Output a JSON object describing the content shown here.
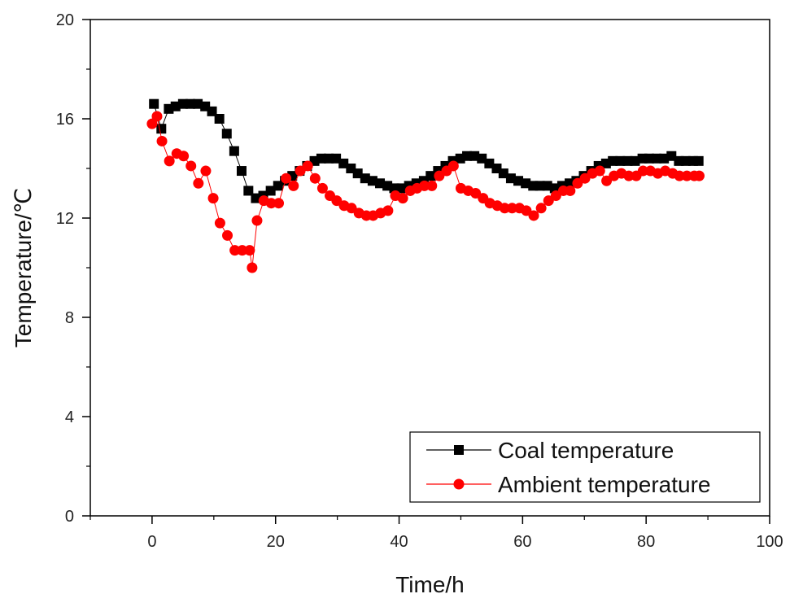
{
  "chart_data": {
    "type": "scatter",
    "title": "",
    "xlabel": "Time/h",
    "ylabel": "Temperature/℃",
    "xlim": [
      -10,
      100
    ],
    "ylim": [
      0,
      20
    ],
    "xticks": [
      0,
      20,
      40,
      60,
      80,
      100
    ],
    "yticks": [
      0,
      4,
      8,
      12,
      16,
      20
    ],
    "xtick_labels": [
      "0",
      "20",
      "40",
      "60",
      "80",
      "100"
    ],
    "ytick_labels": [
      "0",
      "4",
      "8",
      "12",
      "16",
      "20"
    ],
    "grid": false,
    "legend_position": "bottom-right",
    "series": [
      {
        "name": "Coal temperature",
        "color": "#000000",
        "marker": "square",
        "x": [
          0.3,
          1.5,
          2.7,
          3.8,
          5.0,
          6.2,
          7.4,
          8.6,
          9.7,
          10.9,
          12.1,
          13.3,
          14.5,
          15.6,
          16.8,
          18.0,
          19.2,
          20.4,
          21.5,
          22.7,
          23.9,
          25.1,
          26.3,
          27.4,
          28.6,
          29.8,
          31.0,
          32.2,
          33.3,
          34.5,
          35.7,
          36.9,
          38.1,
          39.2,
          40.4,
          41.6,
          42.8,
          44.0,
          45.1,
          46.3,
          47.5,
          48.7,
          49.9,
          51.0,
          52.2,
          53.4,
          54.6,
          55.8,
          56.9,
          58.1,
          59.3,
          60.5,
          61.7,
          62.8,
          64.0,
          65.2,
          66.4,
          67.6,
          68.7,
          69.9,
          71.1,
          72.3,
          73.5,
          74.6,
          75.8,
          77.0,
          78.2,
          79.4,
          80.5,
          81.7,
          82.9,
          84.1,
          85.3,
          86.4,
          87.6,
          88.5
        ],
        "y": [
          16.6,
          15.6,
          16.4,
          16.5,
          16.6,
          16.6,
          16.6,
          16.5,
          16.3,
          16.0,
          15.4,
          14.7,
          13.9,
          13.1,
          12.8,
          12.9,
          13.1,
          13.3,
          13.5,
          13.7,
          13.9,
          14.1,
          14.3,
          14.4,
          14.4,
          14.4,
          14.2,
          14.0,
          13.8,
          13.6,
          13.5,
          13.4,
          13.3,
          13.2,
          13.2,
          13.3,
          13.4,
          13.5,
          13.7,
          13.9,
          14.1,
          14.3,
          14.4,
          14.5,
          14.5,
          14.4,
          14.2,
          14.0,
          13.8,
          13.6,
          13.5,
          13.4,
          13.3,
          13.3,
          13.3,
          13.2,
          13.3,
          13.4,
          13.5,
          13.7,
          13.9,
          14.1,
          14.2,
          14.3,
          14.3,
          14.3,
          14.3,
          14.4,
          14.4,
          14.4,
          14.4,
          14.5,
          14.3,
          14.3,
          14.3,
          14.3
        ]
      },
      {
        "name": "Ambient temperature",
        "color": "#ff0000",
        "marker": "circle",
        "x": [
          0.0,
          0.8,
          1.6,
          2.8,
          4.0,
          5.1,
          6.3,
          7.5,
          8.7,
          9.9,
          11.0,
          12.2,
          13.4,
          14.6,
          15.8,
          16.2,
          17.0,
          18.1,
          19.3,
          20.5,
          21.7,
          22.9,
          24.0,
          25.2,
          26.4,
          27.6,
          28.8,
          29.9,
          31.1,
          32.3,
          33.5,
          34.7,
          35.8,
          37.0,
          38.2,
          39.4,
          40.6,
          41.8,
          42.9,
          44.1,
          45.3,
          46.5,
          47.7,
          48.8,
          50.0,
          51.2,
          52.4,
          53.6,
          54.7,
          55.9,
          57.1,
          58.3,
          59.5,
          60.6,
          61.8,
          63.0,
          64.2,
          65.4,
          66.6,
          67.7,
          68.9,
          70.1,
          71.3,
          72.5,
          73.6,
          74.8,
          76.0,
          77.2,
          78.4,
          79.5,
          80.7,
          81.9,
          83.1,
          84.3,
          85.4,
          86.6,
          87.8,
          88.6
        ],
        "y": [
          15.8,
          16.1,
          15.1,
          14.3,
          14.6,
          14.5,
          14.1,
          13.4,
          13.9,
          12.8,
          11.8,
          11.3,
          10.7,
          10.7,
          10.7,
          10.0,
          11.9,
          12.7,
          12.6,
          12.6,
          13.6,
          13.3,
          13.9,
          14.1,
          13.6,
          13.2,
          12.9,
          12.7,
          12.5,
          12.4,
          12.2,
          12.1,
          12.1,
          12.2,
          12.3,
          12.9,
          12.8,
          13.1,
          13.2,
          13.3,
          13.3,
          13.7,
          13.9,
          14.1,
          13.2,
          13.1,
          13.0,
          12.8,
          12.6,
          12.5,
          12.4,
          12.4,
          12.4,
          12.3,
          12.1,
          12.4,
          12.7,
          12.9,
          13.1,
          13.1,
          13.4,
          13.6,
          13.8,
          13.9,
          13.5,
          13.7,
          13.8,
          13.7,
          13.7,
          13.9,
          13.9,
          13.8,
          13.9,
          13.8,
          13.7,
          13.7,
          13.7,
          13.7
        ]
      }
    ]
  }
}
